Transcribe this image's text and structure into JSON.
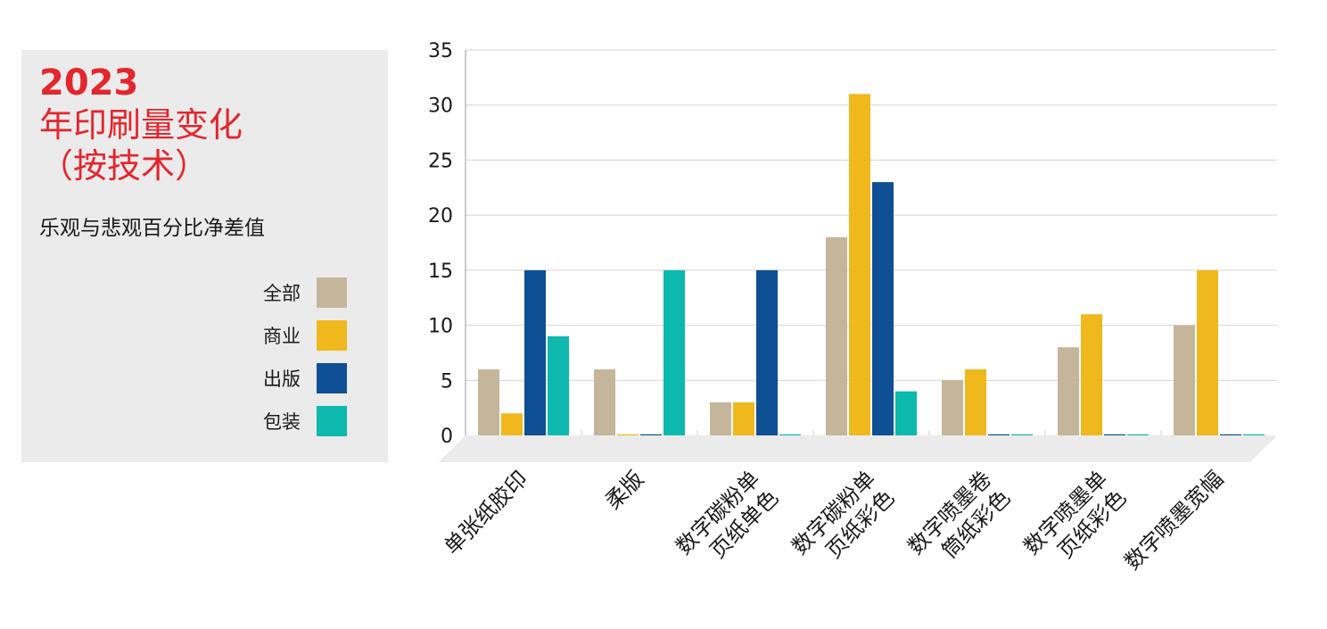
{
  "panel": {
    "title_year": "2023",
    "title_line2": "年印刷量变化",
    "title_line3": "（按技术）",
    "subtitle": "乐观与悲观百分比净差值"
  },
  "chart_data": {
    "type": "bar",
    "categories": [
      [
        "单张纸胶印"
      ],
      [
        "柔版"
      ],
      [
        "数字碳粉单",
        "页纸单色"
      ],
      [
        "数字碳粉单",
        "页纸彩色"
      ],
      [
        "数字喷墨卷",
        "筒纸彩色"
      ],
      [
        "数字喷墨单",
        "页纸彩色"
      ],
      [
        "数字喷墨宽幅"
      ]
    ],
    "series": [
      {
        "name": "全部",
        "color": "#c5b59a",
        "values": [
          6,
          6,
          3,
          18,
          5,
          8,
          10
        ]
      },
      {
        "name": "商业",
        "color": "#efb81c",
        "values": [
          2,
          0,
          3,
          31,
          6,
          11,
          15
        ]
      },
      {
        "name": "出版",
        "color": "#0f4f93",
        "values": [
          15,
          0,
          15,
          23,
          0,
          0,
          0
        ]
      },
      {
        "name": "包装",
        "color": "#0db8ad",
        "values": [
          9,
          15,
          0,
          4,
          0,
          0,
          0
        ]
      }
    ],
    "yticks": [
      0,
      5,
      10,
      15,
      20,
      25,
      30,
      35
    ],
    "ylim": [
      0,
      35
    ],
    "grid": true,
    "legend_position": "left"
  }
}
